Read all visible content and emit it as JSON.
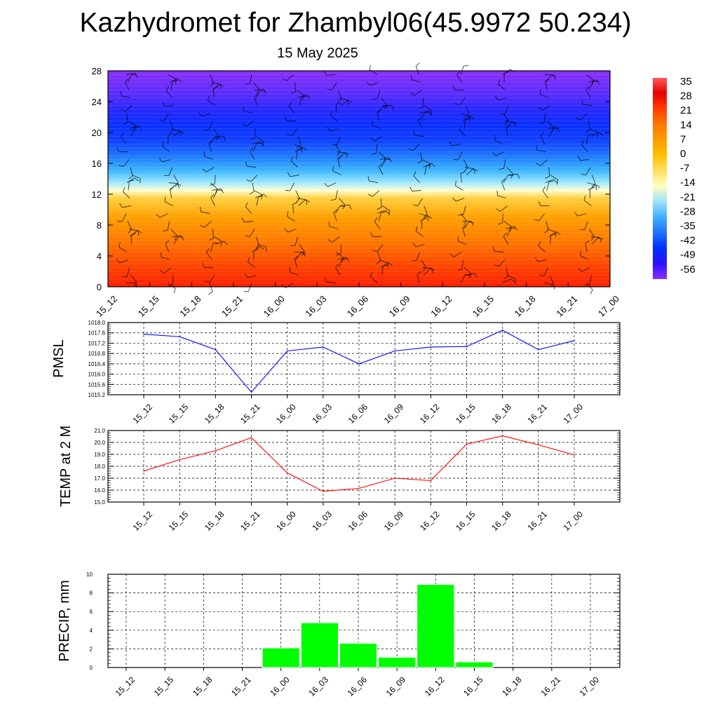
{
  "title": "Kazhydromet for Zhambyl06(45.9972 50.234)",
  "subtitle": "15 May 2025",
  "colors": {
    "pmsl_line": "#0000ff",
    "temp_line": "#ff0000",
    "precip_bar": "#00ff00",
    "grid": "#000000"
  },
  "chart_data": [
    {
      "type": "heatmap",
      "name": "vertical-section",
      "x": [
        "15_12",
        "15_15",
        "15_18",
        "15_21",
        "16_00",
        "16_03",
        "16_06",
        "16_09",
        "16_12",
        "16_15",
        "16_18",
        "16_21",
        "17_00"
      ],
      "ylim": [
        0,
        28
      ],
      "yticks": [
        0,
        4,
        8,
        12,
        16,
        20,
        24,
        28
      ],
      "colorbar": {
        "labels": [
          "35",
          "28",
          "21",
          "14",
          "7",
          "0",
          "-7",
          "-14",
          "-21",
          "-28",
          "-35",
          "-42",
          "-49",
          "-56"
        ],
        "stops": [
          "#ff5a5a",
          "#e60000",
          "#ff3c00",
          "#ff7800",
          "#ff9a00",
          "#ffc000",
          "#ffe060",
          "#ffffc0",
          "#a0e0ff",
          "#40b0ff",
          "#2070ff",
          "#0030ff",
          "#2a10ff",
          "#8a30ff"
        ]
      },
      "layers": [
        {
          "level": 0,
          "color": "#ff1f00"
        },
        {
          "level": 3,
          "color": "#ff4a00"
        },
        {
          "level": 6,
          "color": "#ff7a00"
        },
        {
          "level": 9,
          "color": "#ffa000"
        },
        {
          "level": 11.5,
          "color": "#ffd040"
        },
        {
          "level": 12.5,
          "color": "#ffffd0"
        },
        {
          "level": 13.5,
          "color": "#a0e8ff"
        },
        {
          "level": 15,
          "color": "#40b8ff"
        },
        {
          "level": 17,
          "color": "#1e78ff"
        },
        {
          "level": 19,
          "color": "#1040ff"
        },
        {
          "level": 21,
          "color": "#0a30ff"
        },
        {
          "level": 23,
          "color": "#2828ff"
        },
        {
          "level": 25,
          "color": "#5a2cff"
        },
        {
          "level": 28,
          "color": "#8a30f8"
        }
      ]
    },
    {
      "type": "line",
      "name": "PMSL",
      "ylabel": "PMSL",
      "categories": [
        "15_12",
        "15_15",
        "15_18",
        "15_21",
        "16_00",
        "16_03",
        "16_06",
        "16_09",
        "16_12",
        "16_15",
        "16_18",
        "16_21",
        "17_00"
      ],
      "values": [
        1017.55,
        1017.45,
        1016.95,
        1015.3,
        1016.9,
        1017.05,
        1016.4,
        1016.9,
        1017.05,
        1017.07,
        1017.7,
        1016.95,
        1017.3
      ],
      "ylim": [
        1015.2,
        1018.0
      ],
      "yticks": [
        "1015.2",
        "1015.6",
        "1016.0",
        "1016.4",
        "1016.8",
        "1017.2",
        "1017.6",
        "1018.0"
      ],
      "grid": true
    },
    {
      "type": "line",
      "name": "TEMP",
      "ylabel": "TEMP at 2 M",
      "categories": [
        "15_12",
        "15_15",
        "15_18",
        "15_21",
        "16_00",
        "16_03",
        "16_06",
        "16_09",
        "16_12",
        "16_15",
        "16_18",
        "16_21",
        "17_00"
      ],
      "values": [
        17.6,
        18.55,
        19.3,
        20.4,
        17.45,
        15.9,
        16.15,
        17.0,
        16.8,
        19.85,
        20.55,
        19.8,
        18.95
      ],
      "ylim": [
        15.0,
        21.0
      ],
      "yticks": [
        "15.0",
        "16.0",
        "17.0",
        "18.0",
        "19.0",
        "20.0",
        "21.0"
      ],
      "grid": true
    },
    {
      "type": "bar",
      "name": "PRECIP",
      "ylabel": "PRECIP, mm",
      "categories": [
        "15_12",
        "15_15",
        "15_18",
        "15_21",
        "16_00",
        "16_03",
        "16_06",
        "16_09",
        "16_12",
        "16_15",
        "16_18",
        "16_21",
        "17_00"
      ],
      "values": [
        0,
        0,
        0,
        0,
        2.1,
        4.8,
        2.6,
        1.1,
        8.9,
        0.6,
        0,
        0,
        0
      ],
      "ylim": [
        0,
        10
      ],
      "yticks": [
        "0",
        "2",
        "4",
        "6",
        "8",
        "10"
      ],
      "grid": true
    }
  ]
}
